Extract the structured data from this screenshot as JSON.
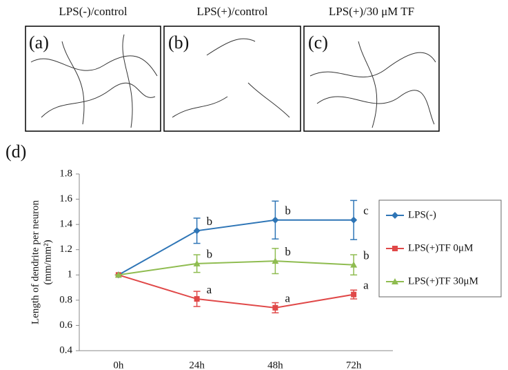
{
  "panels": [
    {
      "title": "LPS(-)/control",
      "letter": "(a)"
    },
    {
      "title": "LPS(+)/control",
      "letter": "(b)"
    },
    {
      "title": "LPS(+)/30 μM TF",
      "letter": "(c)"
    }
  ],
  "chart_letter": "(d)",
  "chart_data": {
    "type": "line",
    "y_label": "Length of dendrite per neuron",
    "y_label_unit": "(mm/mm²)",
    "categories": [
      "0h",
      "24h",
      "48h",
      "72h"
    ],
    "ylim": [
      0.4,
      1.8
    ],
    "yticks": [
      0.4,
      0.6,
      0.8,
      1,
      1.2,
      1.4,
      1.6,
      1.8
    ],
    "legend": "right",
    "series": [
      {
        "name": "LPS(-)",
        "color": "#2e75b6",
        "marker": "diamond",
        "values": [
          1,
          1.35,
          1.435,
          1.435
        ],
        "errors": [
          0,
          0.1,
          0.15,
          0.155
        ],
        "annotations": [
          null,
          "b",
          "b",
          "c"
        ]
      },
      {
        "name": "LPS(+)TF 0μM",
        "color": "#e04848",
        "marker": "square",
        "values": [
          1,
          0.81,
          0.74,
          0.845
        ],
        "errors": [
          0,
          0.06,
          0.04,
          0.035
        ],
        "annotations": [
          null,
          "a",
          "a",
          "a"
        ]
      },
      {
        "name": "LPS(+)TF 30μM",
        "color": "#8fbc50",
        "marker": "triangle",
        "values": [
          1,
          1.09,
          1.11,
          1.08
        ],
        "errors": [
          0,
          0.07,
          0.1,
          0.08
        ],
        "annotations": [
          null,
          "b",
          "b",
          "b"
        ]
      }
    ]
  }
}
